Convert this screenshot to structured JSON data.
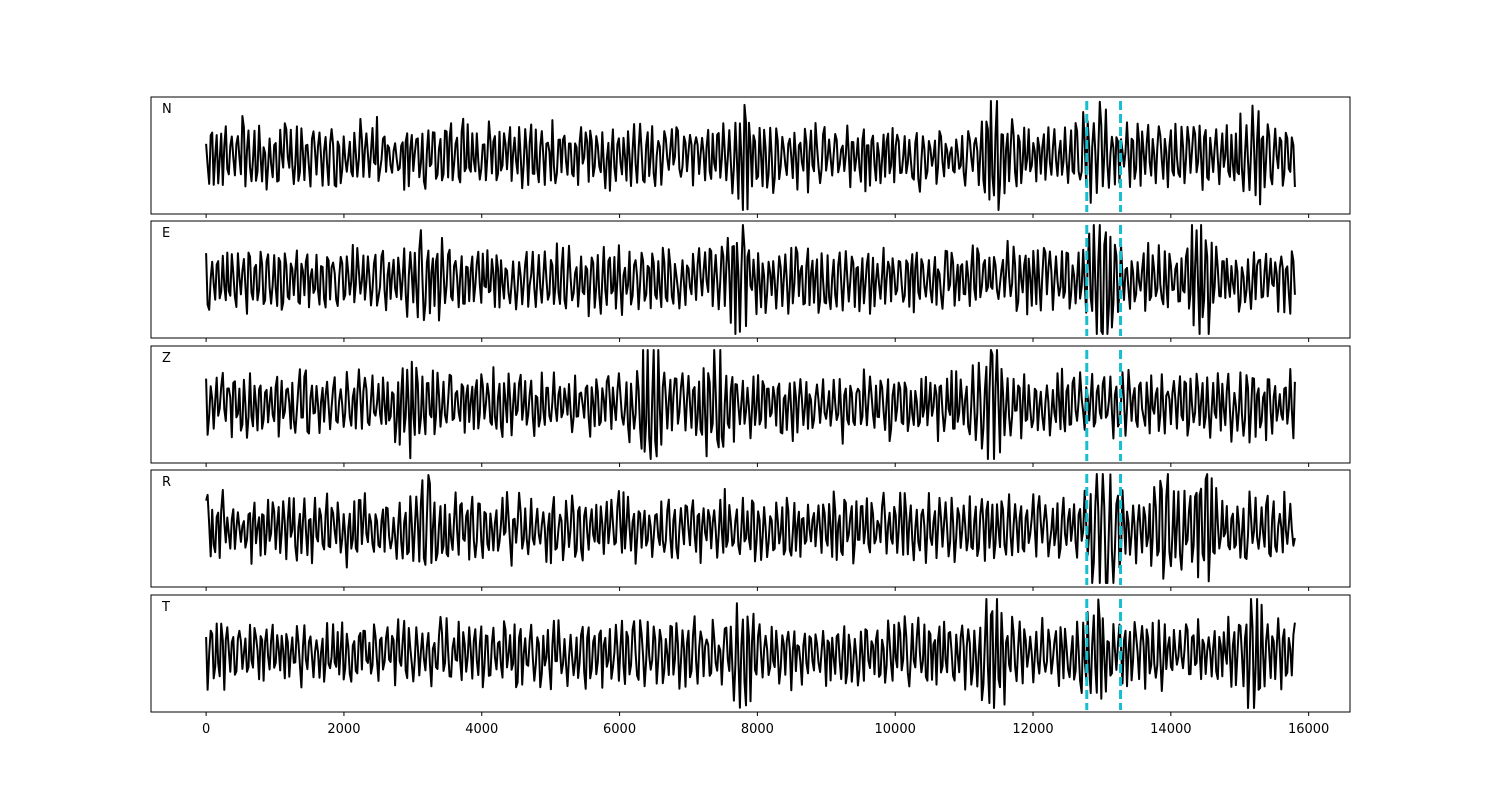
{
  "chart_data": {
    "type": "line",
    "xlabel": "",
    "ylabel": "",
    "xlim": [
      -800,
      16600
    ],
    "x_ticks": [
      0,
      2000,
      4000,
      6000,
      8000,
      10000,
      12000,
      14000,
      16000
    ],
    "x_tick_labels": [
      "0",
      "2000",
      "4000",
      "6000",
      "8000",
      "10000",
      "12000",
      "14000",
      "16000"
    ],
    "x_range": [
      0,
      15800
    ],
    "markers": [
      12780,
      13270
    ],
    "marker_color": "#17becf",
    "line_color": "#000000",
    "grid": false,
    "panels": [
      {
        "label": "N",
        "seed": 11,
        "ylim": [
          -1.3,
          1.3
        ],
        "bursts": [
          [
            7800,
            1.2
          ],
          [
            11440,
            1.5
          ],
          [
            15200,
            1.2
          ],
          [
            12900,
            1.1
          ]
        ]
      },
      {
        "label": "E",
        "seed": 23,
        "ylim": [
          -1.3,
          1.3
        ],
        "bursts": [
          [
            13000,
            1.9
          ],
          [
            14400,
            1.4
          ],
          [
            7700,
            1.3
          ],
          [
            3200,
            1.1
          ]
        ]
      },
      {
        "label": "Z",
        "seed": 37,
        "ylim": [
          -1.3,
          1.3
        ],
        "bursts": [
          [
            6450,
            1.8
          ],
          [
            7400,
            1.4
          ],
          [
            11400,
            1.5
          ],
          [
            2950,
            1.1
          ]
        ]
      },
      {
        "label": "R",
        "seed": 41,
        "ylim": [
          -1.3,
          1.3
        ],
        "bursts": [
          [
            13040,
            2.0
          ],
          [
            14500,
            1.4
          ],
          [
            3200,
            1.1
          ],
          [
            13900,
            1.3
          ]
        ]
      },
      {
        "label": "T",
        "seed": 53,
        "ylim": [
          -1.3,
          1.3
        ],
        "bursts": [
          [
            11440,
            1.5
          ],
          [
            7820,
            1.3
          ],
          [
            15200,
            1.4
          ],
          [
            12900,
            1.1
          ]
        ]
      }
    ]
  }
}
